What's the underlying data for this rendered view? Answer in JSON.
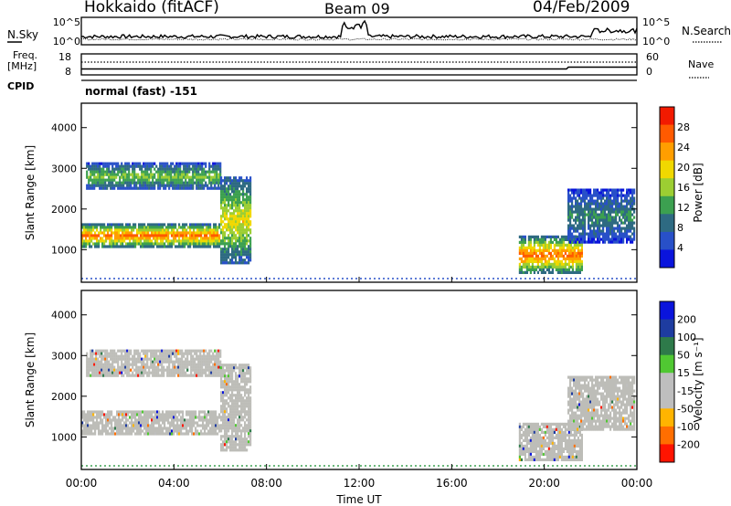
{
  "header": {
    "station": "Hokkaido (fitACF)",
    "beam": "Beam 09",
    "date": "04/Feb/2009"
  },
  "status_panels": {
    "nsky_label": "N.Sky",
    "nsearch_label": "N.Search",
    "scale_left_top": "10^5",
    "scale_left_bottom": "10^0",
    "scale_right_top": "10^5",
    "scale_right_bottom": "10^0",
    "freq_label": "Freq.",
    "freq_unit": "[MHz]",
    "freq_ticks": [
      "18",
      "8"
    ],
    "nave_label": "Nave",
    "nave_ticks": [
      "60",
      "0"
    ],
    "cpid_label": "CPID",
    "cpid_text": "normal (fast) -151"
  },
  "colors": {
    "power_scale": [
      "#0a14dc",
      "#2850c8",
      "#2e6a82",
      "#3ca050",
      "#9cce32",
      "#f0d800",
      "#ff9e00",
      "#ff5a00",
      "#f21a00"
    ],
    "velocity_scale": [
      "#ff1400",
      "#ff6e00",
      "#ffb400",
      "#bebebe",
      "#bebebe",
      "#50c832",
      "#2e7a4a",
      "#1e3ca0",
      "#0a14dc"
    ],
    "grey_scatter": "#bdbdb8"
  },
  "chart_data": [
    {
      "type": "heatmap",
      "name": "power",
      "ylabel": "Slant Range [km]",
      "yticks": [
        "1000",
        "2000",
        "3000",
        "4000"
      ],
      "ylim": [
        200,
        4600
      ],
      "xlim": [
        0,
        24
      ],
      "colorbar_label": "Power [dB]",
      "colorbar_ticks": [
        "4",
        "8",
        "12",
        "16",
        "20",
        "24",
        "28"
      ],
      "colorbar_range": [
        0,
        32
      ],
      "echo_bands": [
        {
          "t0": 0.0,
          "t1": 6.0,
          "r0": 1100,
          "r1": 1650,
          "level": 24
        },
        {
          "t0": 0.2,
          "t1": 6.0,
          "r0": 2500,
          "r1": 3150,
          "level": 14
        },
        {
          "t0": 6.0,
          "t1": 7.3,
          "r0": 700,
          "r1": 2800,
          "level": 18
        },
        {
          "t0": 18.9,
          "t1": 21.6,
          "r0": 450,
          "r1": 1350,
          "level": 24
        },
        {
          "t0": 21.0,
          "t1": 23.9,
          "r0": 1200,
          "r1": 2500,
          "level": 10
        }
      ]
    },
    {
      "type": "heatmap",
      "name": "velocity",
      "ylabel": "Slant Range [km]",
      "yticks": [
        "1000",
        "2000",
        "3000",
        "4000"
      ],
      "ylim": [
        200,
        4600
      ],
      "xlim": [
        0,
        24
      ],
      "xlabel": "Time UT",
      "xticks": [
        "00:00",
        "04:00",
        "08:00",
        "12:00",
        "16:00",
        "20:00",
        "00:00"
      ],
      "colorbar_label": "Velocity [m s⁻¹]",
      "colorbar_ticks": [
        "200",
        "100",
        "50",
        "15",
        "-15",
        "-50",
        "-100",
        "-200"
      ],
      "echo_bands": [
        {
          "t0": 0.0,
          "t1": 6.0,
          "r0": 1100,
          "r1": 1650,
          "velocity": 0
        },
        {
          "t0": 0.2,
          "t1": 6.0,
          "r0": 2500,
          "r1": 3150,
          "velocity": 0
        },
        {
          "t0": 6.0,
          "t1": 7.3,
          "r0": 700,
          "r1": 2800,
          "velocity": 0
        },
        {
          "t0": 18.9,
          "t1": 21.6,
          "r0": 450,
          "r1": 1350,
          "velocity": 0
        },
        {
          "t0": 21.0,
          "t1": 23.9,
          "r0": 1200,
          "r1": 2500,
          "velocity": 0
        }
      ]
    }
  ]
}
